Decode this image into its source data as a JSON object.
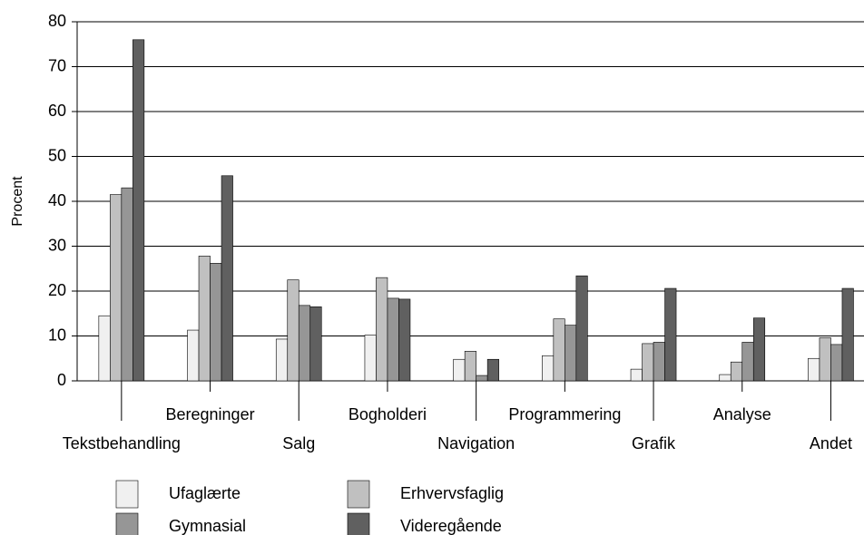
{
  "chart_data": {
    "type": "bar",
    "y_label": "Procent",
    "categories": [
      "Tekstbehandling",
      "Beregninger",
      "Salg",
      "Bogholderi",
      "Navigation",
      "Programmering",
      "Grafik",
      "Analyse",
      "Andet"
    ],
    "series": [
      {
        "name": "Ufaglærte",
        "color": "#f0f0f0",
        "values": [
          14.5,
          11.3,
          9.3,
          10.2,
          4.8,
          5.6,
          2.6,
          1.4,
          5
        ]
      },
      {
        "name": "Erhvervsfaglig",
        "color": "#c0c0c0",
        "values": [
          41.5,
          27.8,
          22.5,
          23,
          6.6,
          13.8,
          8.3,
          4.2,
          9.6
        ]
      },
      {
        "name": "Gymnasial",
        "color": "#969696",
        "values": [
          43,
          26.2,
          16.8,
          18.4,
          1.2,
          12.4,
          8.6,
          8.6,
          8.1
        ]
      },
      {
        "name": "Videregående",
        "color": "#606060",
        "values": [
          76,
          45.7,
          16.5,
          18.2,
          4.8,
          23.4,
          20.6,
          14,
          20.6
        ]
      }
    ],
    "ylim": [
      0,
      80
    ],
    "yticks": [
      0,
      10,
      20,
      30,
      40,
      50,
      60,
      70,
      80
    ],
    "grid": true
  }
}
